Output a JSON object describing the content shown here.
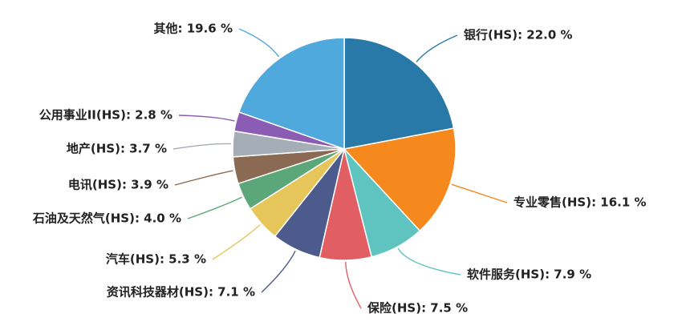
{
  "chart_data": {
    "type": "pie",
    "slices": [
      {
        "label": "银行(HS)",
        "value": 22.0,
        "display": "银行(HS): 22.0 %",
        "color": "#2878a8"
      },
      {
        "label": "专业零售(HS)",
        "value": 16.1,
        "display": "专业零售(HS): 16.1 %",
        "color": "#f5891e"
      },
      {
        "label": "软件服务(HS)",
        "value": 7.9,
        "display": "软件服务(HS): 7.9 %",
        "color": "#5fc3c0"
      },
      {
        "label": "保险(HS)",
        "value": 7.5,
        "display": "保险(HS): 7.5 %",
        "color": "#e15f63"
      },
      {
        "label": "资讯科技器材(HS)",
        "value": 7.1,
        "display": "资讯科技器材(HS): 7.1 %",
        "color": "#4c5a8c"
      },
      {
        "label": "汽车(HS)",
        "value": 5.3,
        "display": "汽车(HS): 5.3 %",
        "color": "#e6c55b"
      },
      {
        "label": "石油及天然气(HS)",
        "value": 4.0,
        "display": "石油及天然气(HS): 4.0 %",
        "color": "#5ca779"
      },
      {
        "label": "电讯(HS)",
        "value": 3.9,
        "display": "电讯(HS): 3.9 %",
        "color": "#8a6a52"
      },
      {
        "label": "地产(HS)",
        "value": 3.7,
        "display": "地产(HS): 3.7 %",
        "color": "#a5adb6"
      },
      {
        "label": "公用事业II(HS)",
        "value": 2.8,
        "display": "公用事业II(HS): 2.8 %",
        "color": "#8a5cb4"
      },
      {
        "label": "其他",
        "value": 19.6,
        "display": "其他: 19.6 %",
        "color": "#4fa9dc"
      }
    ],
    "start": "12 o'clock",
    "direction": "clockwise",
    "legend": "none"
  }
}
